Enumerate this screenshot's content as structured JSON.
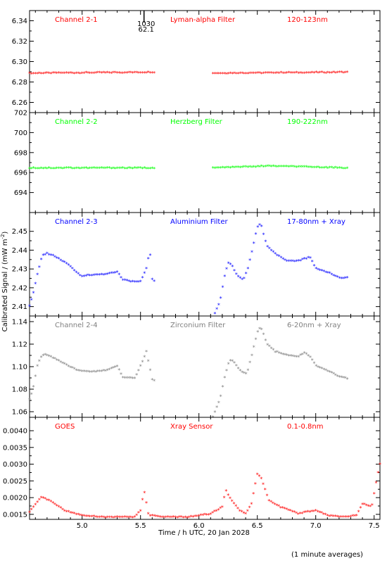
{
  "figure": {
    "y_axis_title": "Calibrated Signal / (mW m",
    "y_axis_title_sup": "-2",
    "y_axis_title_end": ")",
    "x_axis_title": "Time / h UTC, 20 Jan 2028",
    "footnote": "(1 minute averages)",
    "marker_label_top": "1030",
    "marker_label_bottom": "62.1",
    "marker_time": 5.53
  },
  "chart_data": [
    {
      "type": "scatter",
      "panel": "Channel 2-1",
      "header": [
        "Channel 2-1",
        "Lyman-alpha Filter",
        "120-123nm"
      ],
      "color": "#ff0000",
      "xlim": [
        4.55,
        7.55
      ],
      "ylim": [
        6.25,
        6.35
      ],
      "yticks": [
        "6.26",
        "6.28",
        "6.30",
        "6.32",
        "6.34"
      ],
      "xticks": [
        "",
        "",
        "",
        "",
        "",
        ""
      ],
      "segments": [
        {
          "x_range": [
            4.55,
            5.63
          ],
          "points": [
            [
              4.55,
              6.288
            ],
            [
              5.63,
              6.289
            ]
          ]
        },
        {
          "x_range": [
            6.12,
            7.27
          ],
          "points": [
            [
              6.12,
              6.288
            ],
            [
              7.27,
              6.289
            ]
          ]
        }
      ]
    },
    {
      "type": "scatter",
      "panel": "Channel 2-2",
      "header": [
        "Channel 2-2",
        "Herzberg Filter",
        "190-222nm"
      ],
      "color": "#00ff00",
      "xlim": [
        4.55,
        7.55
      ],
      "ylim": [
        692,
        702
      ],
      "yticks": [
        "694",
        "696",
        "698",
        "700",
        "702"
      ],
      "xticks": [
        "",
        "",
        "",
        "",
        "",
        ""
      ],
      "segments": [
        {
          "x_range": [
            4.55,
            5.63
          ],
          "points": [
            [
              4.55,
              696.4
            ],
            [
              5.63,
              696.4
            ]
          ]
        },
        {
          "x_range": [
            6.12,
            7.27
          ],
          "points": [
            [
              6.12,
              696.4
            ],
            [
              6.6,
              696.6
            ],
            [
              7.27,
              696.4
            ]
          ]
        }
      ]
    },
    {
      "type": "scatter",
      "panel": "Channel 2-3",
      "header": [
        "Channel 2-3",
        "Aluminium Filter",
        "17-80nm + Xray"
      ],
      "color": "#0000ff",
      "xlim": [
        4.55,
        7.55
      ],
      "ylim": [
        2.405,
        2.46
      ],
      "yticks": [
        "2.41",
        "2.42",
        "2.43",
        "2.44",
        "2.45"
      ],
      "xticks": [
        "",
        "",
        "",
        "",
        "",
        ""
      ],
      "segments": [
        {
          "x_range": [
            4.55,
            5.63
          ],
          "points": [
            [
              4.55,
              2.41
            ],
            [
              4.58,
              2.416
            ],
            [
              4.62,
              2.428
            ],
            [
              4.66,
              2.437
            ],
            [
              4.7,
              2.438
            ],
            [
              4.78,
              2.436
            ],
            [
              4.88,
              2.432
            ],
            [
              4.97,
              2.427
            ],
            [
              5.0,
              2.426
            ],
            [
              5.2,
              2.427
            ],
            [
              5.3,
              2.428
            ],
            [
              5.35,
              2.424
            ],
            [
              5.42,
              2.423
            ],
            [
              5.5,
              2.423
            ],
            [
              5.55,
              2.43
            ],
            [
              5.58,
              2.44
            ],
            [
              5.6,
              2.424
            ],
            [
              5.63,
              2.423
            ]
          ]
        },
        {
          "x_range": [
            6.12,
            7.27
          ],
          "points": [
            [
              6.12,
              2.404
            ],
            [
              6.18,
              2.412
            ],
            [
              6.22,
              2.426
            ],
            [
              6.25,
              2.433
            ],
            [
              6.28,
              2.432
            ],
            [
              6.33,
              2.426
            ],
            [
              6.38,
              2.424
            ],
            [
              6.42,
              2.43
            ],
            [
              6.45,
              2.438
            ],
            [
              6.5,
              2.452
            ],
            [
              6.53,
              2.454
            ],
            [
              6.58,
              2.442
            ],
            [
              6.65,
              2.438
            ],
            [
              6.75,
              2.434
            ],
            [
              6.85,
              2.434
            ],
            [
              6.95,
              2.436
            ],
            [
              7.0,
              2.43
            ],
            [
              7.1,
              2.428
            ],
            [
              7.2,
              2.425
            ],
            [
              7.27,
              2.425
            ]
          ]
        }
      ]
    },
    {
      "type": "scatter",
      "panel": "Channel 2-4",
      "header": [
        "Channel 2-4",
        "Zirconium Filter",
        "6-20nm + Xray"
      ],
      "color": "#808080",
      "xlim": [
        4.55,
        7.55
      ],
      "ylim": [
        1.055,
        1.145
      ],
      "yticks": [
        "1.06",
        "1.08",
        "1.10",
        "1.12",
        "1.14"
      ],
      "xticks": [
        "",
        "",
        "",
        "",
        "",
        ""
      ],
      "segments": [
        {
          "x_range": [
            4.55,
            5.63
          ],
          "points": [
            [
              4.55,
              1.07
            ],
            [
              4.58,
              1.08
            ],
            [
              4.62,
              1.102
            ],
            [
              4.66,
              1.11
            ],
            [
              4.7,
              1.11
            ],
            [
              4.78,
              1.106
            ],
            [
              4.88,
              1.1
            ],
            [
              4.97,
              1.096
            ],
            [
              5.1,
              1.095
            ],
            [
              5.2,
              1.096
            ],
            [
              5.25,
              1.098
            ],
            [
              5.3,
              1.1
            ],
            [
              5.35,
              1.09
            ],
            [
              5.45,
              1.089
            ],
            [
              5.5,
              1.1
            ],
            [
              5.55,
              1.113
            ],
            [
              5.6,
              1.088
            ],
            [
              5.63,
              1.086
            ]
          ]
        },
        {
          "x_range": [
            6.12,
            7.27
          ],
          "points": [
            [
              6.12,
              1.055
            ],
            [
              6.18,
              1.07
            ],
            [
              6.22,
              1.09
            ],
            [
              6.26,
              1.105
            ],
            [
              6.3,
              1.104
            ],
            [
              6.36,
              1.095
            ],
            [
              6.41,
              1.093
            ],
            [
              6.45,
              1.108
            ],
            [
              6.5,
              1.13
            ],
            [
              6.53,
              1.135
            ],
            [
              6.58,
              1.12
            ],
            [
              6.65,
              1.113
            ],
            [
              6.75,
              1.11
            ],
            [
              6.85,
              1.108
            ],
            [
              6.9,
              1.112
            ],
            [
              6.95,
              1.109
            ],
            [
              7.0,
              1.1
            ],
            [
              7.1,
              1.096
            ],
            [
              7.2,
              1.091
            ],
            [
              7.27,
              1.089
            ]
          ]
        }
      ]
    },
    {
      "type": "scatter",
      "panel": "GOES",
      "header": [
        "GOES",
        "Xray Sensor",
        "0.1-0.8nm"
      ],
      "color": "#ff0000",
      "xlim": [
        4.55,
        7.55
      ],
      "ylim": [
        0.00135,
        0.0044
      ],
      "yticks": [
        "0.0015",
        "0.0020",
        "0.0025",
        "0.0030",
        "0.0035",
        "0.0040"
      ],
      "xticks": [
        "",
        "5.0",
        "5.5",
        "6.0",
        "6.5",
        "7.0",
        "7.5"
      ],
      "segments": [
        {
          "x_range": [
            4.55,
            7.55
          ],
          "points": [
            [
              4.55,
              0.00155
            ],
            [
              4.65,
              0.002
            ],
            [
              4.72,
              0.0019
            ],
            [
              4.85,
              0.0016
            ],
            [
              5.0,
              0.00145
            ],
            [
              5.2,
              0.0014
            ],
            [
              5.45,
              0.0014
            ],
            [
              5.5,
              0.0016
            ],
            [
              5.53,
              0.0022
            ],
            [
              5.57,
              0.00145
            ],
            [
              5.7,
              0.0014
            ],
            [
              5.9,
              0.0014
            ],
            [
              6.1,
              0.0015
            ],
            [
              6.2,
              0.0017
            ],
            [
              6.23,
              0.0022
            ],
            [
              6.28,
              0.0019
            ],
            [
              6.35,
              0.0016
            ],
            [
              6.4,
              0.0015
            ],
            [
              6.45,
              0.0018
            ],
            [
              6.5,
              0.0027
            ],
            [
              6.53,
              0.0026
            ],
            [
              6.6,
              0.0019
            ],
            [
              6.7,
              0.0017
            ],
            [
              6.85,
              0.0015
            ],
            [
              7.0,
              0.0016
            ],
            [
              7.1,
              0.00145
            ],
            [
              7.25,
              0.0014
            ],
            [
              7.35,
              0.00145
            ],
            [
              7.4,
              0.0018
            ],
            [
              7.48,
              0.0017
            ],
            [
              7.52,
              0.0025
            ],
            [
              7.55,
              0.003
            ]
          ]
        }
      ]
    }
  ]
}
